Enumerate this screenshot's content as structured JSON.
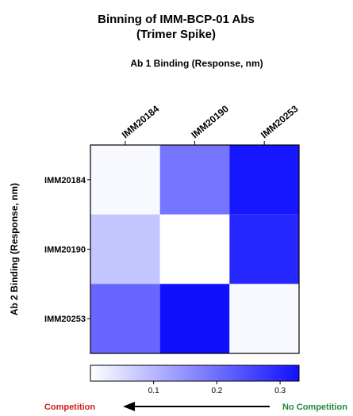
{
  "chart_data": {
    "type": "heatmap",
    "title": "Binning of IMM-BCP-01 Abs",
    "subtitle": "(Trimer Spike)",
    "xlabel": "Ab 1 Binding (Response, nm)",
    "ylabel": "Ab 2 Binding (Response, nm)",
    "x_categories": [
      "IMM20184",
      "IMM20190",
      "IMM20253"
    ],
    "y_categories": [
      "IMM20184",
      "IMM20190",
      "IMM20253"
    ],
    "values": [
      [
        0.01,
        0.19,
        0.32
      ],
      [
        0.08,
        0.0,
        0.3
      ],
      [
        0.21,
        0.33,
        0.01
      ]
    ],
    "color_scale": {
      "min": 0,
      "max": 0.33,
      "low_color": "#ffffff",
      "high_color": "#1010ff"
    },
    "colorbar_ticks": [
      0.1,
      0.2,
      0.3
    ],
    "grid": false,
    "legend": "bottom",
    "annotation": {
      "left_label": "Competition",
      "left_color": "#d02020",
      "right_label": "No Competition",
      "right_color": "#1e8a3a"
    }
  }
}
